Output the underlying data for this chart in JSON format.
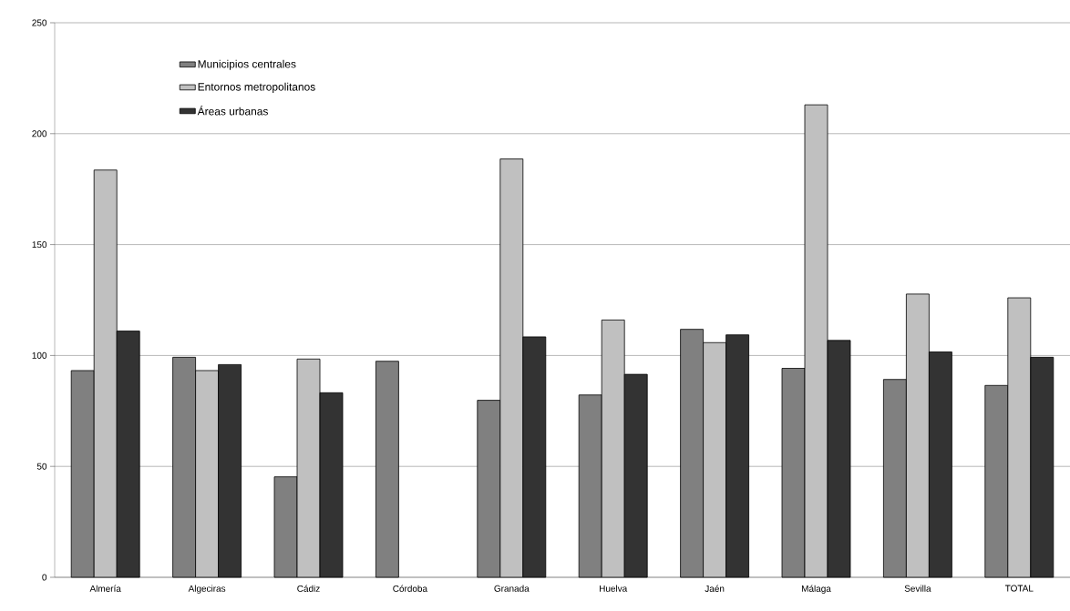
{
  "chart_data": {
    "type": "bar",
    "categories": [
      "Almería",
      "Algeciras",
      "Cádiz",
      "Córdoba",
      "Granada",
      "Huelva",
      "Jaén",
      "Málaga",
      "Sevilla",
      "TOTAL"
    ],
    "series": [
      {
        "name": "Municipios centrales",
        "color": "#808080",
        "values": [
          93.2,
          99.2,
          45.3,
          97.4,
          79.8,
          82.2,
          111.8,
          94.2,
          89.2,
          86.5
        ]
      },
      {
        "name": "Entornos metropolitanos",
        "color": "#c0c0c0",
        "values": [
          183.6,
          93.2,
          98.4,
          null,
          188.6,
          116,
          105.8,
          213,
          127.7,
          126
        ]
      },
      {
        "name": "Áreas urbanas",
        "color": "#333333",
        "values": [
          111,
          95.9,
          83.2,
          null,
          108.4,
          91.5,
          109.3,
          106.8,
          101.6,
          99.2
        ]
      }
    ],
    "ylim": [
      0,
      250
    ],
    "yticks": [
      0,
      50,
      100,
      150,
      200,
      250
    ],
    "grid": "y",
    "legend": "top left"
  }
}
